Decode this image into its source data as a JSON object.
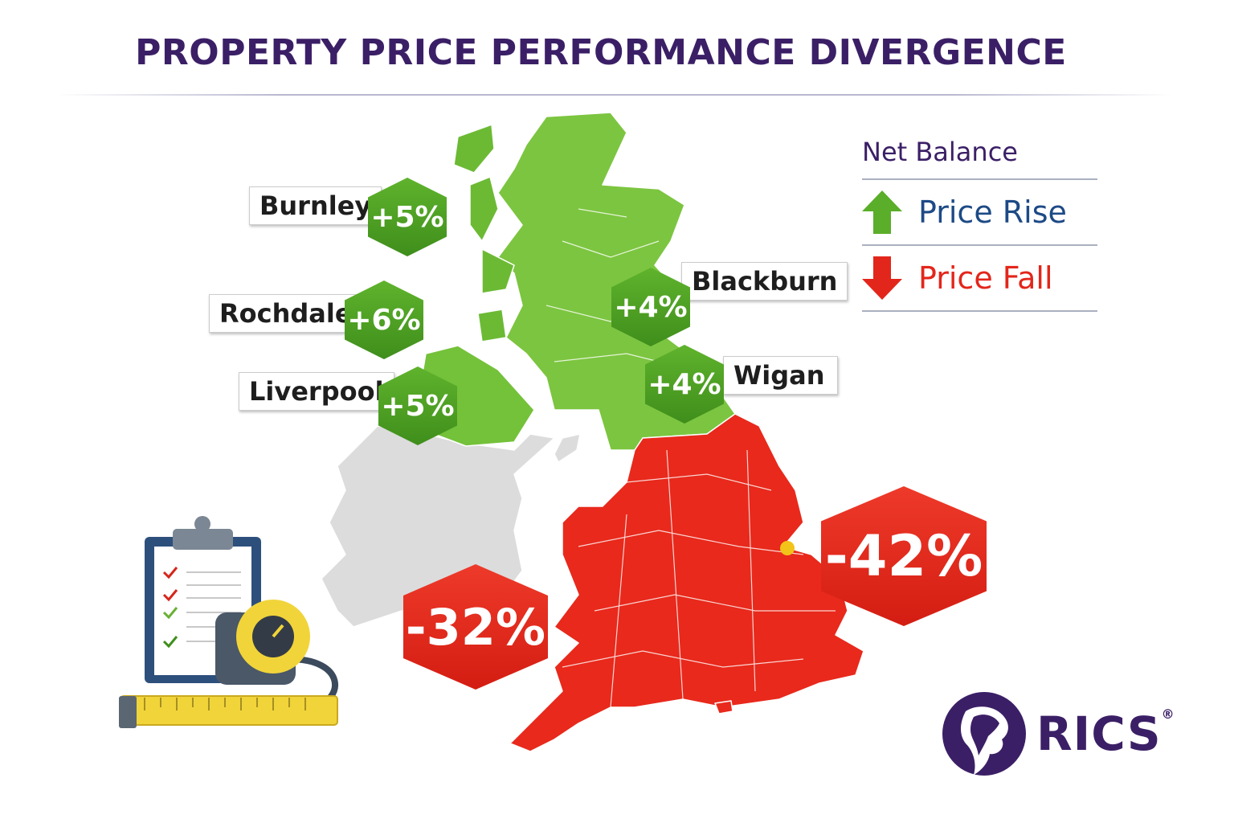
{
  "title": "PROPERTY PRICE PERFORMANCE DIVERGENCE",
  "legend": {
    "heading": "Net Balance",
    "items": [
      {
        "label": "Price Rise",
        "icon": "arrow-up-icon",
        "color": "#5aae2a",
        "text_color": "#1d4a86"
      },
      {
        "label": "Price Fall",
        "icon": "arrow-down-icon",
        "color": "#e3261b",
        "text_color": "#e3261b"
      }
    ]
  },
  "regions": {
    "burnley": {
      "name": "Burnley",
      "change": "+5%"
    },
    "rochdale": {
      "name": "Rochdale",
      "change": "+6%"
    },
    "liverpool": {
      "name": "Liverpool",
      "change": "+5%"
    },
    "blackburn": {
      "name": "Blackburn",
      "change": "+4%"
    },
    "wigan": {
      "name": "Wigan",
      "change": "+4%"
    }
  },
  "south_badges": {
    "east": "-42%",
    "west": "-32%"
  },
  "colors": {
    "rise": "#5aae2a",
    "fall": "#e3261b",
    "neutral": "#dcdcdc",
    "brand": "#3b1f66"
  },
  "logo": {
    "text": "RICS",
    "mark": "®"
  }
}
